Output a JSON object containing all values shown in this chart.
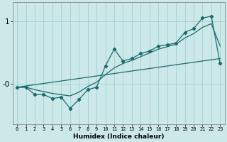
{
  "xlabel": "Humidex (Indice chaleur)",
  "background_color": "#cce8e8",
  "grid_color": "#99cccc",
  "line_color": "#1a6b6b",
  "x": [
    0,
    1,
    2,
    3,
    4,
    5,
    6,
    7,
    8,
    9,
    10,
    11,
    12,
    13,
    14,
    15,
    16,
    17,
    18,
    19,
    20,
    21,
    22,
    23
  ],
  "y_main": [
    -0.06,
    -0.06,
    -0.18,
    -0.18,
    -0.24,
    -0.22,
    -0.4,
    -0.26,
    -0.1,
    -0.06,
    0.28,
    0.55,
    0.36,
    0.4,
    0.48,
    0.52,
    0.6,
    0.62,
    0.65,
    0.82,
    0.88,
    1.05,
    1.08,
    0.32
  ],
  "y_smooth1": [
    -0.06,
    -0.06,
    -0.1,
    -0.13,
    -0.16,
    -0.18,
    -0.2,
    -0.14,
    -0.05,
    0.02,
    0.14,
    0.25,
    0.32,
    0.37,
    0.43,
    0.49,
    0.55,
    0.59,
    0.63,
    0.73,
    0.8,
    0.9,
    0.96,
    0.6
  ],
  "y_linear": [
    -0.06,
    -0.04,
    -0.02,
    0.0,
    0.02,
    0.04,
    0.06,
    0.08,
    0.1,
    0.12,
    0.14,
    0.16,
    0.18,
    0.2,
    0.22,
    0.24,
    0.26,
    0.28,
    0.3,
    0.32,
    0.34,
    0.36,
    0.38,
    0.4
  ],
  "ylim": [
    -0.65,
    1.3
  ],
  "yticks": [
    0.0,
    1.0
  ],
  "ytick_labels": [
    "-0",
    "1"
  ],
  "xlim": [
    -0.5,
    23.5
  ],
  "xticks": [
    0,
    1,
    2,
    3,
    4,
    5,
    6,
    7,
    8,
    9,
    10,
    11,
    12,
    13,
    14,
    15,
    16,
    17,
    18,
    19,
    20,
    21,
    22,
    23
  ]
}
